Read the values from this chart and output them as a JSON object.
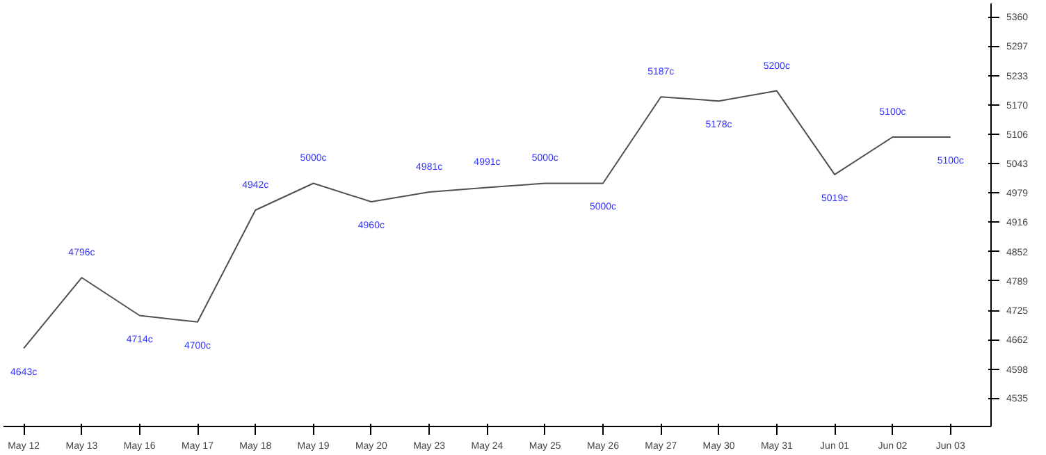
{
  "chart_data": {
    "type": "line",
    "categories": [
      "May 12",
      "May 13",
      "May 16",
      "May 17",
      "May 18",
      "May 19",
      "May 20",
      "May 23",
      "May 24",
      "May 25",
      "May 26",
      "May 27",
      "May 30",
      "May 31",
      "Jun 01",
      "Jun 02",
      "Jun 03"
    ],
    "series": [
      {
        "color": "#505050",
        "values": [
          4643,
          4796,
          4714,
          4700,
          4942,
          5000,
          4960,
          4981,
          4991,
          5000,
          5000,
          5187,
          5178,
          5200,
          5019,
          5100,
          5100
        ],
        "value_labels": [
          "4643c",
          "4796c",
          "4714c",
          "4700c",
          "4942c",
          "5000c",
          "4960c",
          "4981c",
          "4991c",
          "5000c",
          "5000c",
          "5187c",
          "5178c",
          "5200c",
          "5019c",
          "5100c",
          "5100c"
        ]
      }
    ],
    "ylim": [
      4474,
      5389
    ],
    "yticks": [
      4535,
      4598,
      4662,
      4725,
      4789,
      4852,
      4916,
      4979,
      5043,
      5106,
      5170,
      5233,
      5297,
      5360
    ],
    "grid": false,
    "marker": "none",
    "line_style": "solid"
  }
}
